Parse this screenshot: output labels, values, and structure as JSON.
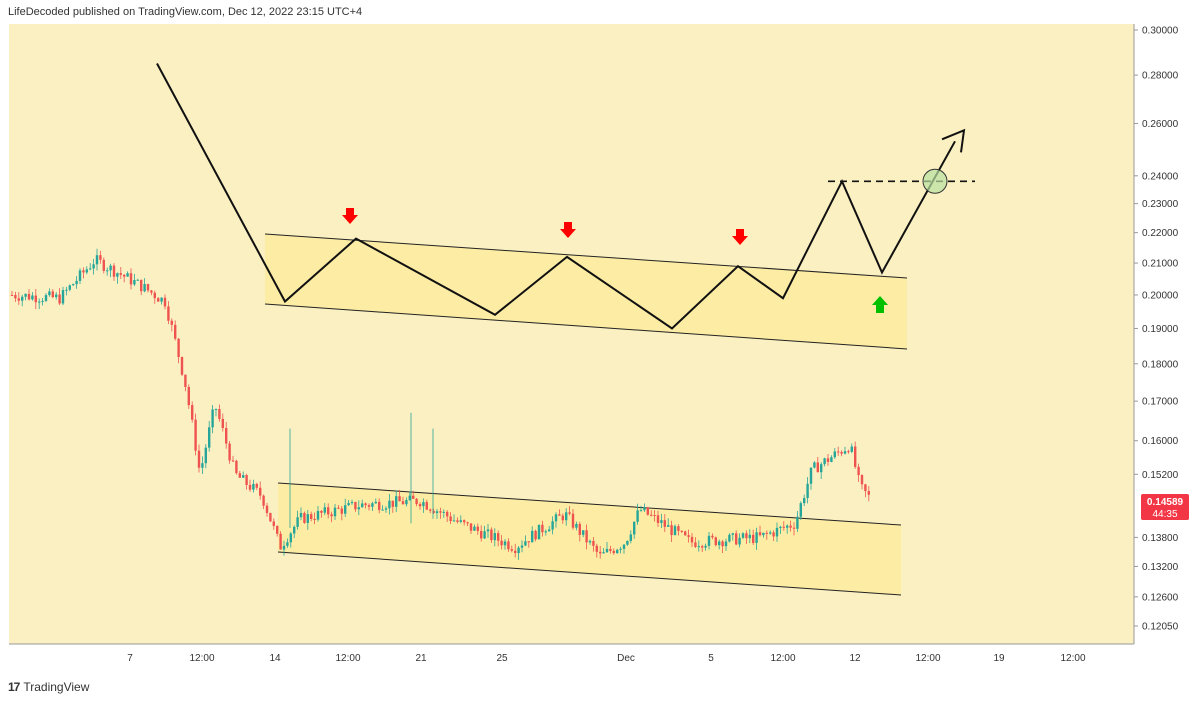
{
  "header": {
    "publisher_line": "LifeDecoded published on TradingView.com, Dec 12, 2022 23:15 UTC+4"
  },
  "footer": {
    "brand": "TradingView",
    "logo_text": "17"
  },
  "colors": {
    "background": "#fbf0c2",
    "up": "#26a69a",
    "down": "#ef5350",
    "channel_fill": "#fde98c",
    "arrow_down": "#ff0000",
    "arrow_up": "#00c000",
    "price_tag": "#f23645"
  },
  "price_tag": {
    "price": "0.14589",
    "countdown": "44:35"
  },
  "chart_data": {
    "type": "candlestick",
    "y_scale": "log",
    "y_ticks": [
      "0.30000",
      "0.28000",
      "0.26000",
      "0.24000",
      "0.23000",
      "0.22000",
      "0.21000",
      "0.20000",
      "0.19000",
      "0.18000",
      "0.17000",
      "0.16000",
      "0.15200",
      "0.14589",
      "0.13800",
      "0.13200",
      "0.12600",
      "0.12050"
    ],
    "x_ticks": [
      "7",
      "12:00",
      "14",
      "12:00",
      "21",
      "25",
      "Dec",
      "5",
      "12:00",
      "12",
      "12:00",
      "19",
      "12:00"
    ],
    "last_price": 0.14589,
    "channel_upper_start": 0.15,
    "channel_upper_end": 0.14,
    "channel_lower_start": 0.135,
    "channel_lower_end": 0.127,
    "projection_path": [
      0.285,
      0.198,
      0.218,
      0.194,
      0.212,
      0.19,
      0.209,
      0.199,
      0.238,
      0.207,
      0.253
    ],
    "target_level": 0.238
  }
}
